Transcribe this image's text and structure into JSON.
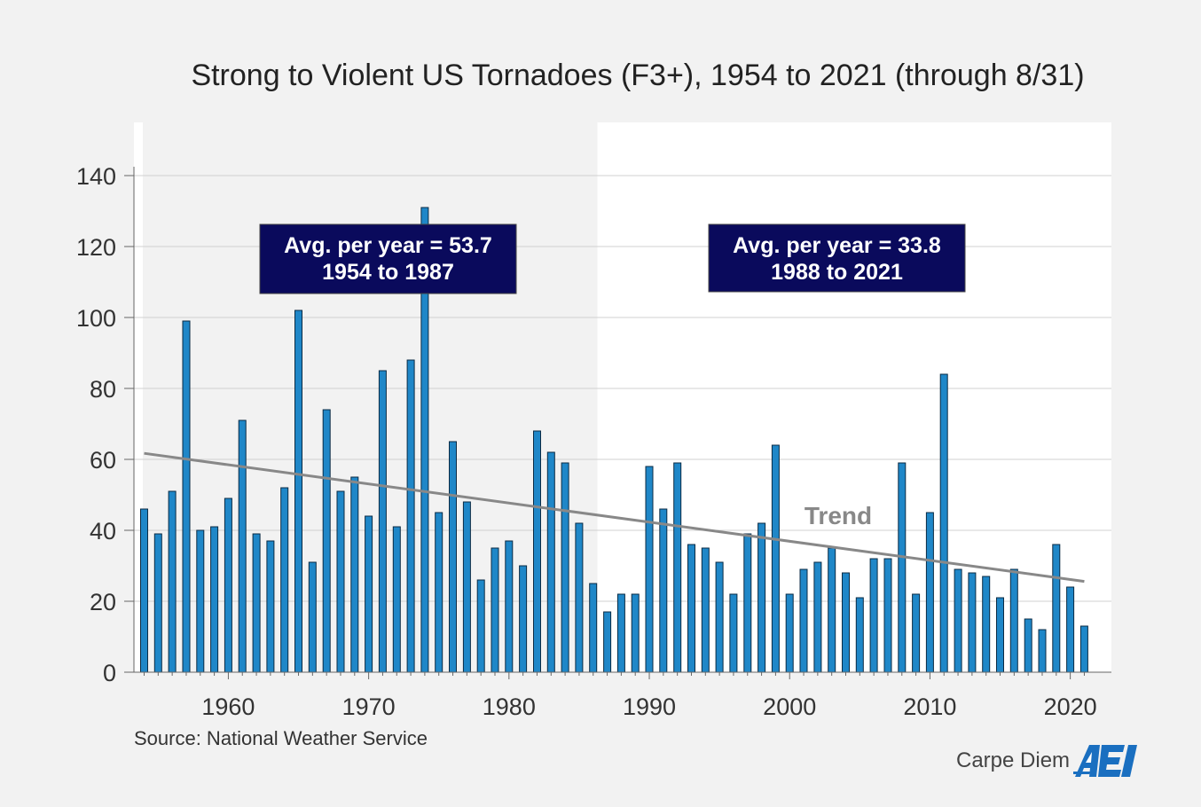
{
  "source": "Source: National Weather Service",
  "branding": {
    "text": "Carpe Diem",
    "logo_text": "AEI"
  },
  "colors": {
    "background": "#f2f2f2",
    "plot_highlight": "#ffffff",
    "bar_fill": "#1f87c8",
    "bar_stroke": "#0b2b44",
    "trend_line": "#888888",
    "annotation_box": "#0a0a5c",
    "annotation_text": "#ffffff",
    "grid": "#d0d0d0",
    "logo": "#1a6fc0"
  },
  "chart_data": {
    "type": "bar",
    "title": "Strong to Violent US Tornadoes (F3+), 1954 to 2021 (through 8/31)",
    "xlabel": "",
    "ylabel": "",
    "ylim": [
      0,
      150
    ],
    "yticks": [
      0,
      20,
      40,
      60,
      80,
      100,
      120,
      140
    ],
    "xticks": [
      1960,
      1970,
      1980,
      1990,
      2000,
      2010,
      2020
    ],
    "grid": true,
    "x": [
      1954,
      1955,
      1956,
      1957,
      1958,
      1959,
      1960,
      1961,
      1962,
      1963,
      1964,
      1965,
      1966,
      1967,
      1968,
      1969,
      1970,
      1971,
      1972,
      1973,
      1974,
      1975,
      1976,
      1977,
      1978,
      1979,
      1980,
      1981,
      1982,
      1983,
      1984,
      1985,
      1986,
      1987,
      1988,
      1989,
      1990,
      1991,
      1992,
      1993,
      1994,
      1995,
      1996,
      1997,
      1998,
      1999,
      2000,
      2001,
      2002,
      2003,
      2004,
      2005,
      2006,
      2007,
      2008,
      2009,
      2010,
      2011,
      2012,
      2013,
      2014,
      2015,
      2016,
      2017,
      2018,
      2019,
      2020,
      2021
    ],
    "values": [
      46,
      39,
      51,
      99,
      40,
      41,
      49,
      71,
      39,
      37,
      52,
      102,
      31,
      74,
      51,
      55,
      44,
      85,
      41,
      88,
      131,
      45,
      65,
      48,
      26,
      35,
      37,
      30,
      68,
      62,
      59,
      42,
      25,
      17,
      22,
      22,
      58,
      46,
      59,
      36,
      35,
      31,
      22,
      39,
      42,
      64,
      22,
      29,
      31,
      35,
      28,
      21,
      32,
      32,
      59,
      22,
      45,
      84,
      29,
      28,
      27,
      21,
      29,
      15,
      12,
      36,
      24,
      13
    ],
    "trend": {
      "label": "Trend",
      "start": {
        "x": 1954,
        "y": 61.7
      },
      "end": {
        "x": 2021,
        "y": 25.6
      }
    },
    "highlight_period": [
      1986.3,
      2022
    ],
    "annotations": [
      {
        "line1": "Avg. per year = 53.7",
        "line2": "1954 to 1987"
      },
      {
        "line1": "Avg. per year = 33.8",
        "line2": "1988 to 2021"
      }
    ]
  }
}
